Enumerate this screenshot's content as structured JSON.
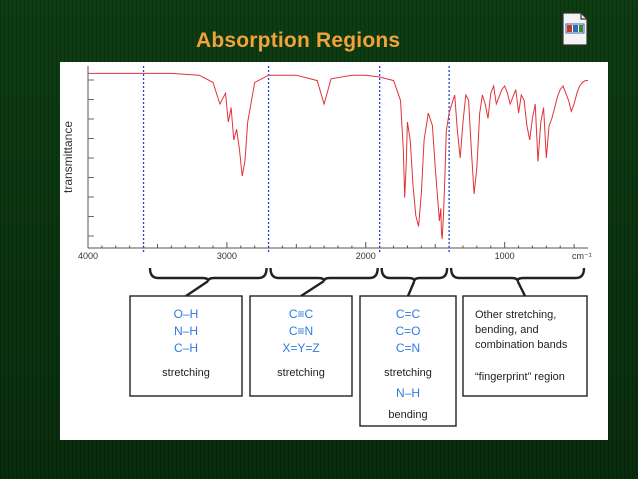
{
  "slide": {
    "title": "Absorption Regions",
    "file_icon": "document-icon",
    "title_color": "#f2a23a",
    "background_color": "#0c3811"
  },
  "chart_data": {
    "type": "line",
    "title": "",
    "xlabel": "cm⁻¹",
    "ylabel": "transmittance",
    "xlim": [
      4000,
      400
    ],
    "x_axis_reversed": true,
    "x_ticks": [
      4000,
      3000,
      2000,
      1000
    ],
    "x_tick_labels": [
      "4000",
      "3000",
      "2000",
      "1000"
    ],
    "y_scale": "relative (0 = bottom, 100 = top)",
    "ylim": [
      0,
      100
    ],
    "grid": false,
    "line_color": "#e0333a",
    "region_divider_color": "#2a3fd0",
    "region_dividers_cm": [
      3600,
      2700,
      1900,
      1400
    ],
    "series": [
      {
        "name": "",
        "x": [
          4000,
          3800,
          3600,
          3400,
          3200,
          3100,
          3050,
          3010,
          2990,
          2970,
          2950,
          2930,
          2910,
          2890,
          2870,
          2850,
          2800,
          2700,
          2500,
          2350,
          2300,
          2250,
          2100,
          2000,
          1900,
          1800,
          1750,
          1730,
          1720,
          1710,
          1700,
          1680,
          1660,
          1640,
          1620,
          1600,
          1580,
          1550,
          1520,
          1500,
          1480,
          1470,
          1460,
          1455,
          1450,
          1440,
          1430,
          1420,
          1400,
          1380,
          1360,
          1340,
          1320,
          1300,
          1280,
          1260,
          1240,
          1220,
          1200,
          1180,
          1160,
          1140,
          1120,
          1100,
          1080,
          1060,
          1040,
          1020,
          1000,
          980,
          960,
          940,
          920,
          900,
          880,
          860,
          840,
          820,
          800,
          780,
          760,
          740,
          720,
          700,
          680,
          660,
          640,
          620,
          600,
          580,
          560,
          540,
          520,
          500,
          480,
          460,
          440,
          420,
          400
        ],
        "values": [
          97,
          97,
          97,
          97,
          96,
          92,
          80,
          86,
          70,
          78,
          60,
          66,
          55,
          40,
          48,
          70,
          92,
          96,
          96,
          93,
          80,
          94,
          96,
          96,
          95,
          93,
          82,
          55,
          28,
          45,
          70,
          60,
          35,
          18,
          12,
          30,
          60,
          75,
          68,
          45,
          25,
          15,
          22,
          8,
          5,
          20,
          40,
          65,
          75,
          80,
          85,
          65,
          50,
          70,
          85,
          82,
          55,
          30,
          45,
          75,
          85,
          80,
          72,
          86,
          90,
          80,
          84,
          88,
          90,
          86,
          80,
          84,
          88,
          75,
          85,
          82,
          68,
          60,
          72,
          80,
          48,
          70,
          78,
          50,
          68,
          72,
          78,
          84,
          88,
          90,
          86,
          82,
          76,
          80,
          86,
          90,
          92,
          93,
          93
        ]
      }
    ],
    "region_boxes": [
      {
        "lines": [
          "O–H",
          "N–H",
          "C–H"
        ],
        "caption": "stretching"
      },
      {
        "lines": [
          "C≡C",
          "C≡N",
          "X=Y=Z"
        ],
        "caption": "stretching"
      },
      {
        "lines": [
          "C=C",
          "C=O",
          "C=N"
        ],
        "caption": "stretching",
        "lines2": [
          "N–H"
        ],
        "caption2": "bending"
      },
      {
        "text_lines": [
          "Other stretching,",
          "bending, and",
          "combination bands"
        ],
        "caption": "“fingerprint” region"
      }
    ]
  }
}
